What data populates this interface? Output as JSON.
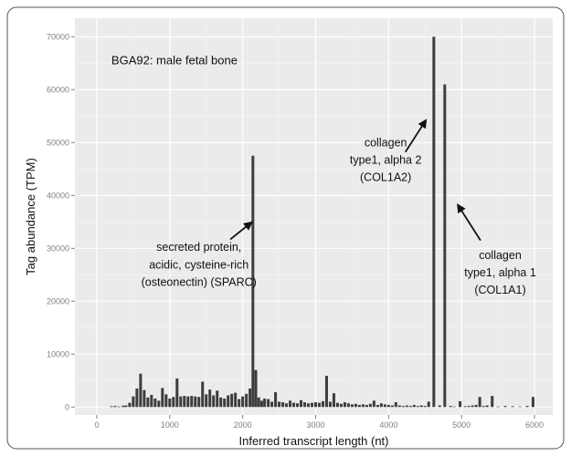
{
  "chart_data": {
    "type": "bar",
    "subtitle": "BGA92: male fetal bone",
    "xlabel": "Inferred transcript length  (nt)",
    "ylabel": "Tag abundance (TPM)",
    "xlim": [
      -300,
      6250
    ],
    "ylim": [
      -1500,
      73500
    ],
    "x_ticks": [
      0,
      1000,
      2000,
      3000,
      4000,
      5000,
      6000
    ],
    "x_tick_labels": [
      "0",
      "1000",
      "2000",
      "3000",
      "4000",
      "5000",
      "6000"
    ],
    "y_ticks": [
      0,
      10000,
      20000,
      30000,
      40000,
      50000,
      60000,
      70000
    ],
    "y_tick_labels": [
      "0",
      "10000",
      "20000",
      "30000",
      "40000",
      "50000",
      "60000",
      "70000"
    ],
    "grid": true,
    "bar_color": "#3d3d3d",
    "panel_color": "#ebebeb",
    "points": [
      {
        "x": 200,
        "y": 150
      },
      {
        "x": 250,
        "y": 200
      },
      {
        "x": 300,
        "y": 100
      },
      {
        "x": 360,
        "y": 250
      },
      {
        "x": 400,
        "y": 300
      },
      {
        "x": 450,
        "y": 800
      },
      {
        "x": 500,
        "y": 2000
      },
      {
        "x": 550,
        "y": 3500
      },
      {
        "x": 600,
        "y": 6300
      },
      {
        "x": 650,
        "y": 3200
      },
      {
        "x": 700,
        "y": 1800
      },
      {
        "x": 750,
        "y": 2300
      },
      {
        "x": 800,
        "y": 1600
      },
      {
        "x": 850,
        "y": 1200
      },
      {
        "x": 900,
        "y": 3600
      },
      {
        "x": 950,
        "y": 2400
      },
      {
        "x": 1000,
        "y": 1600
      },
      {
        "x": 1050,
        "y": 1900
      },
      {
        "x": 1100,
        "y": 5400
      },
      {
        "x": 1150,
        "y": 2000
      },
      {
        "x": 1200,
        "y": 2100
      },
      {
        "x": 1250,
        "y": 2000
      },
      {
        "x": 1300,
        "y": 2100
      },
      {
        "x": 1350,
        "y": 2000
      },
      {
        "x": 1400,
        "y": 1900
      },
      {
        "x": 1450,
        "y": 4800
      },
      {
        "x": 1500,
        "y": 2400
      },
      {
        "x": 1550,
        "y": 3300
      },
      {
        "x": 1600,
        "y": 2200
      },
      {
        "x": 1650,
        "y": 3100
      },
      {
        "x": 1700,
        "y": 1800
      },
      {
        "x": 1750,
        "y": 1600
      },
      {
        "x": 1800,
        "y": 2200
      },
      {
        "x": 1850,
        "y": 2500
      },
      {
        "x": 1900,
        "y": 2700
      },
      {
        "x": 1950,
        "y": 1500
      },
      {
        "x": 2000,
        "y": 2000
      },
      {
        "x": 2050,
        "y": 2500
      },
      {
        "x": 2100,
        "y": 3500
      },
      {
        "x": 2140,
        "y": 47500
      },
      {
        "x": 2180,
        "y": 7000
      },
      {
        "x": 2220,
        "y": 1800
      },
      {
        "x": 2260,
        "y": 1200
      },
      {
        "x": 2300,
        "y": 1600
      },
      {
        "x": 2350,
        "y": 1500
      },
      {
        "x": 2400,
        "y": 1000
      },
      {
        "x": 2450,
        "y": 2800
      },
      {
        "x": 2500,
        "y": 1000
      },
      {
        "x": 2550,
        "y": 900
      },
      {
        "x": 2600,
        "y": 700
      },
      {
        "x": 2650,
        "y": 1200
      },
      {
        "x": 2700,
        "y": 800
      },
      {
        "x": 2750,
        "y": 700
      },
      {
        "x": 2800,
        "y": 1300
      },
      {
        "x": 2850,
        "y": 900
      },
      {
        "x": 2900,
        "y": 700
      },
      {
        "x": 2950,
        "y": 800
      },
      {
        "x": 3000,
        "y": 900
      },
      {
        "x": 3050,
        "y": 800
      },
      {
        "x": 3100,
        "y": 1100
      },
      {
        "x": 3150,
        "y": 5900
      },
      {
        "x": 3200,
        "y": 1000
      },
      {
        "x": 3250,
        "y": 2600
      },
      {
        "x": 3300,
        "y": 800
      },
      {
        "x": 3350,
        "y": 600
      },
      {
        "x": 3400,
        "y": 900
      },
      {
        "x": 3450,
        "y": 700
      },
      {
        "x": 3500,
        "y": 500
      },
      {
        "x": 3550,
        "y": 600
      },
      {
        "x": 3600,
        "y": 400
      },
      {
        "x": 3650,
        "y": 500
      },
      {
        "x": 3700,
        "y": 400
      },
      {
        "x": 3750,
        "y": 600
      },
      {
        "x": 3800,
        "y": 1200
      },
      {
        "x": 3850,
        "y": 400
      },
      {
        "x": 3900,
        "y": 700
      },
      {
        "x": 3950,
        "y": 500
      },
      {
        "x": 4000,
        "y": 400
      },
      {
        "x": 4050,
        "y": 300
      },
      {
        "x": 4100,
        "y": 900
      },
      {
        "x": 4150,
        "y": 300
      },
      {
        "x": 4200,
        "y": 200
      },
      {
        "x": 4250,
        "y": 300
      },
      {
        "x": 4300,
        "y": 200
      },
      {
        "x": 4350,
        "y": 400
      },
      {
        "x": 4400,
        "y": 200
      },
      {
        "x": 4450,
        "y": 300
      },
      {
        "x": 4500,
        "y": 200
      },
      {
        "x": 4550,
        "y": 1000
      },
      {
        "x": 4620,
        "y": 70000
      },
      {
        "x": 4700,
        "y": 300
      },
      {
        "x": 4770,
        "y": 61000
      },
      {
        "x": 4850,
        "y": 200
      },
      {
        "x": 4900,
        "y": 100
      },
      {
        "x": 4980,
        "y": 1100
      },
      {
        "x": 5050,
        "y": 150
      },
      {
        "x": 5100,
        "y": 200
      },
      {
        "x": 5150,
        "y": 300
      },
      {
        "x": 5200,
        "y": 400
      },
      {
        "x": 5250,
        "y": 1900
      },
      {
        "x": 5300,
        "y": 200
      },
      {
        "x": 5350,
        "y": 300
      },
      {
        "x": 5420,
        "y": 2100
      },
      {
        "x": 5500,
        "y": 100
      },
      {
        "x": 5600,
        "y": 200
      },
      {
        "x": 5700,
        "y": 150
      },
      {
        "x": 5800,
        "y": 100
      },
      {
        "x": 5900,
        "y": 200
      },
      {
        "x": 5980,
        "y": 1900
      }
    ],
    "annotations": [
      {
        "lines": [
          "secreted protein,",
          "acidic, cysteine-rich",
          "(osteonectin) (SPARC)"
        ],
        "text_x": 1400,
        "text_top": 29500,
        "line_step": 3300,
        "arrow_from": [
          1830,
          31700
        ],
        "arrow_to": [
          2120,
          34900
        ]
      },
      {
        "lines": [
          "collagen",
          "type1, alpha 2",
          "(COL1A2)"
        ],
        "text_x": 3960,
        "text_top": 49300,
        "line_step": 3300,
        "arrow_from": [
          4230,
          48200
        ],
        "arrow_to": [
          4510,
          54200
        ]
      },
      {
        "lines": [
          "collagen",
          "type1, alpha 1",
          "(COL1A1)"
        ],
        "text_x": 5530,
        "text_top": 28000,
        "line_step": 3300,
        "arrow_from": [
          5260,
          31500
        ],
        "arrow_to": [
          4950,
          38200
        ]
      }
    ]
  }
}
